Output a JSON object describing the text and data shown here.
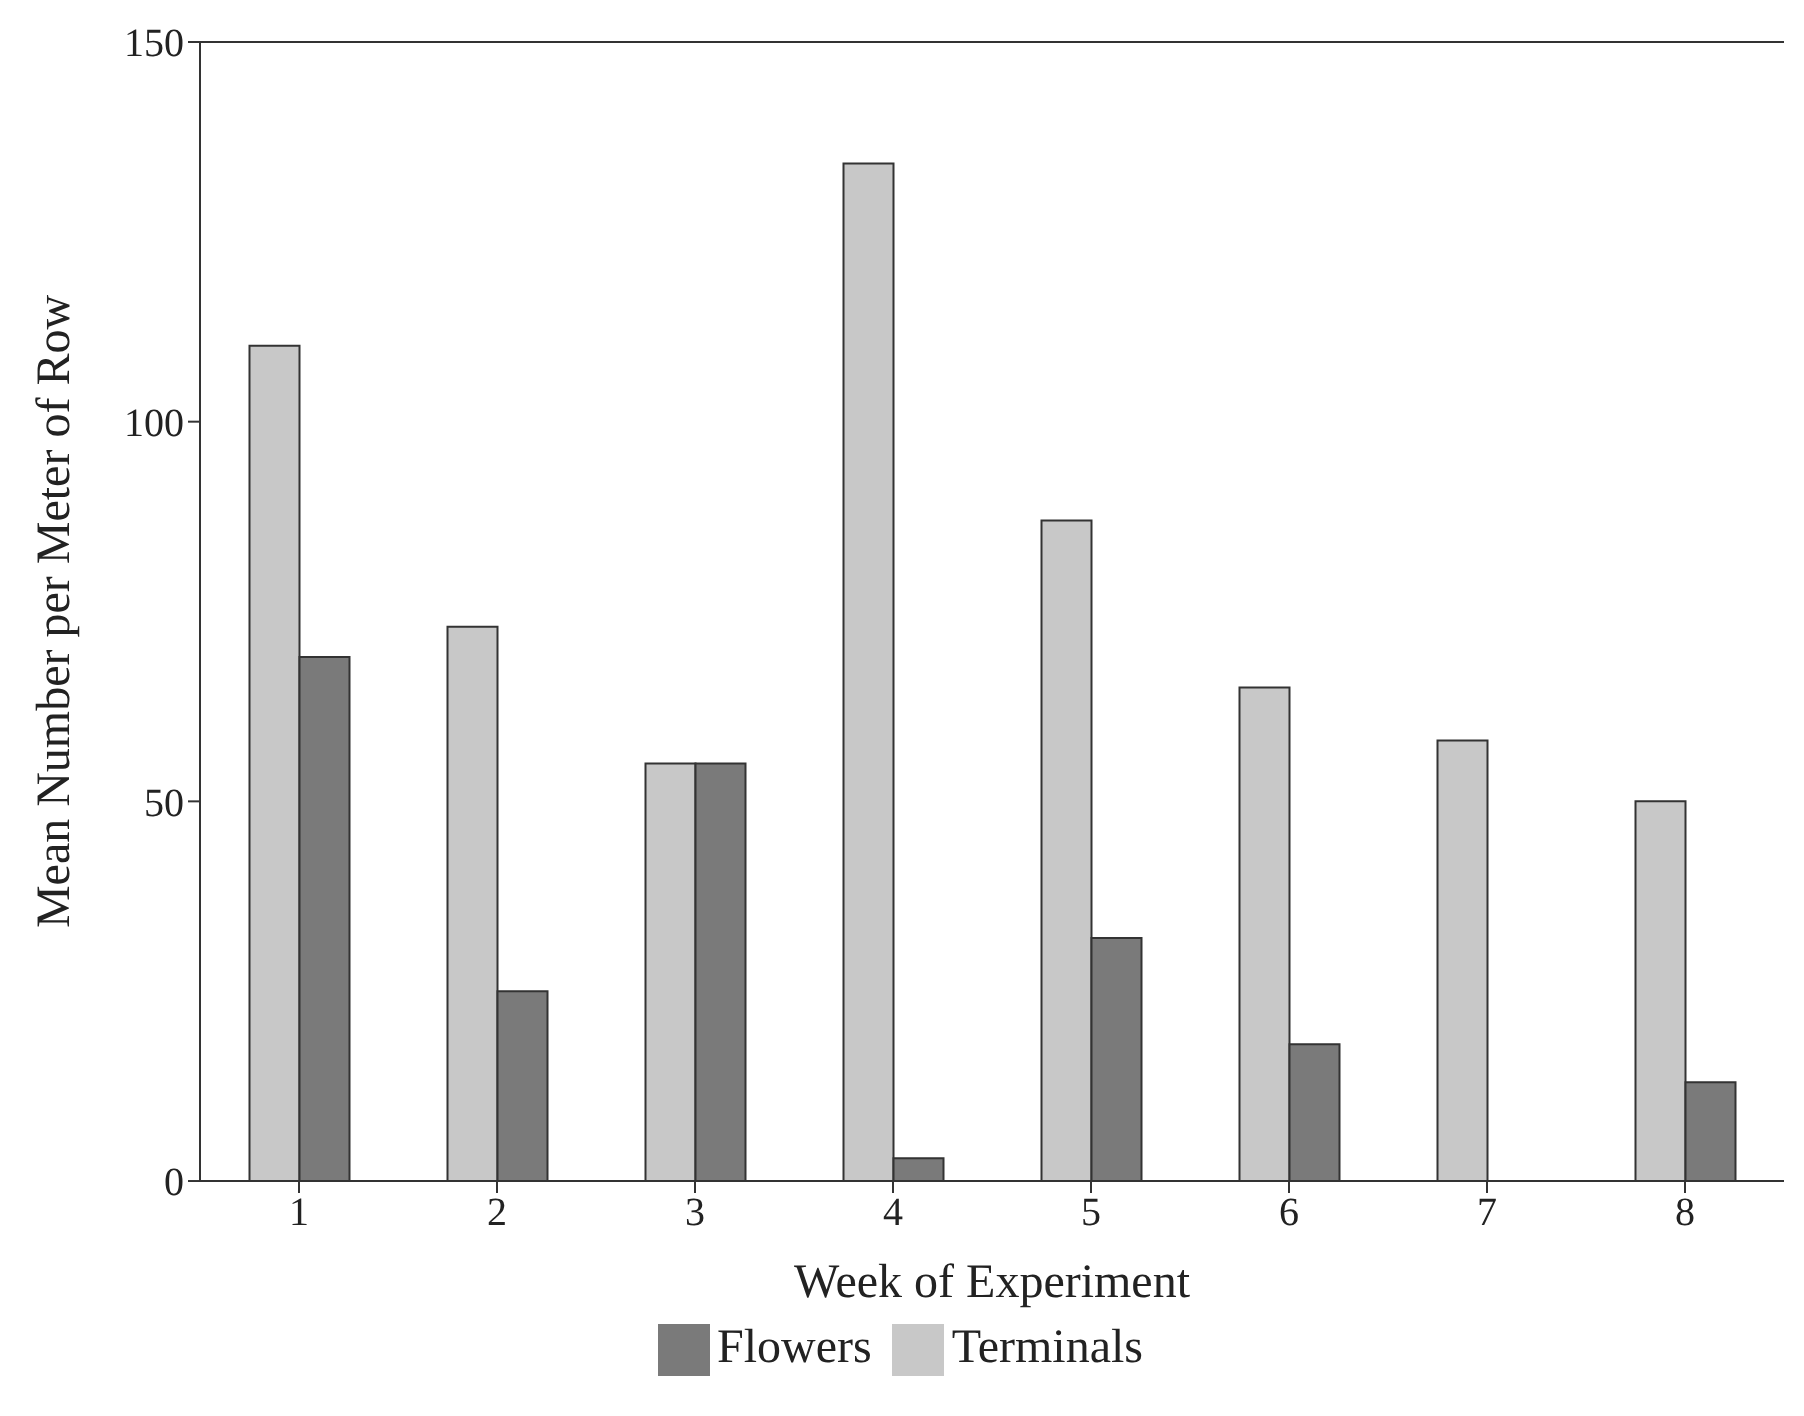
{
  "chart_data": {
    "type": "bar",
    "xlabel": "Week of Experiment",
    "ylabel": "Mean Number per Meter of Row",
    "categories": [
      "1",
      "2",
      "3",
      "4",
      "5",
      "6",
      "7",
      "8"
    ],
    "series": [
      {
        "name": "Terminals",
        "color": "#c8c8c8",
        "values": [
          110,
          73,
          55,
          134,
          87,
          65,
          58,
          50
        ]
      },
      {
        "name": "Flowers",
        "color": "#7a7a7a",
        "values": [
          69,
          25,
          55,
          3,
          32,
          18,
          null,
          13
        ]
      }
    ],
    "ylim": [
      0,
      150
    ],
    "yticks": [
      0,
      50,
      100,
      150
    ],
    "grid": false,
    "legend": "bottom"
  }
}
